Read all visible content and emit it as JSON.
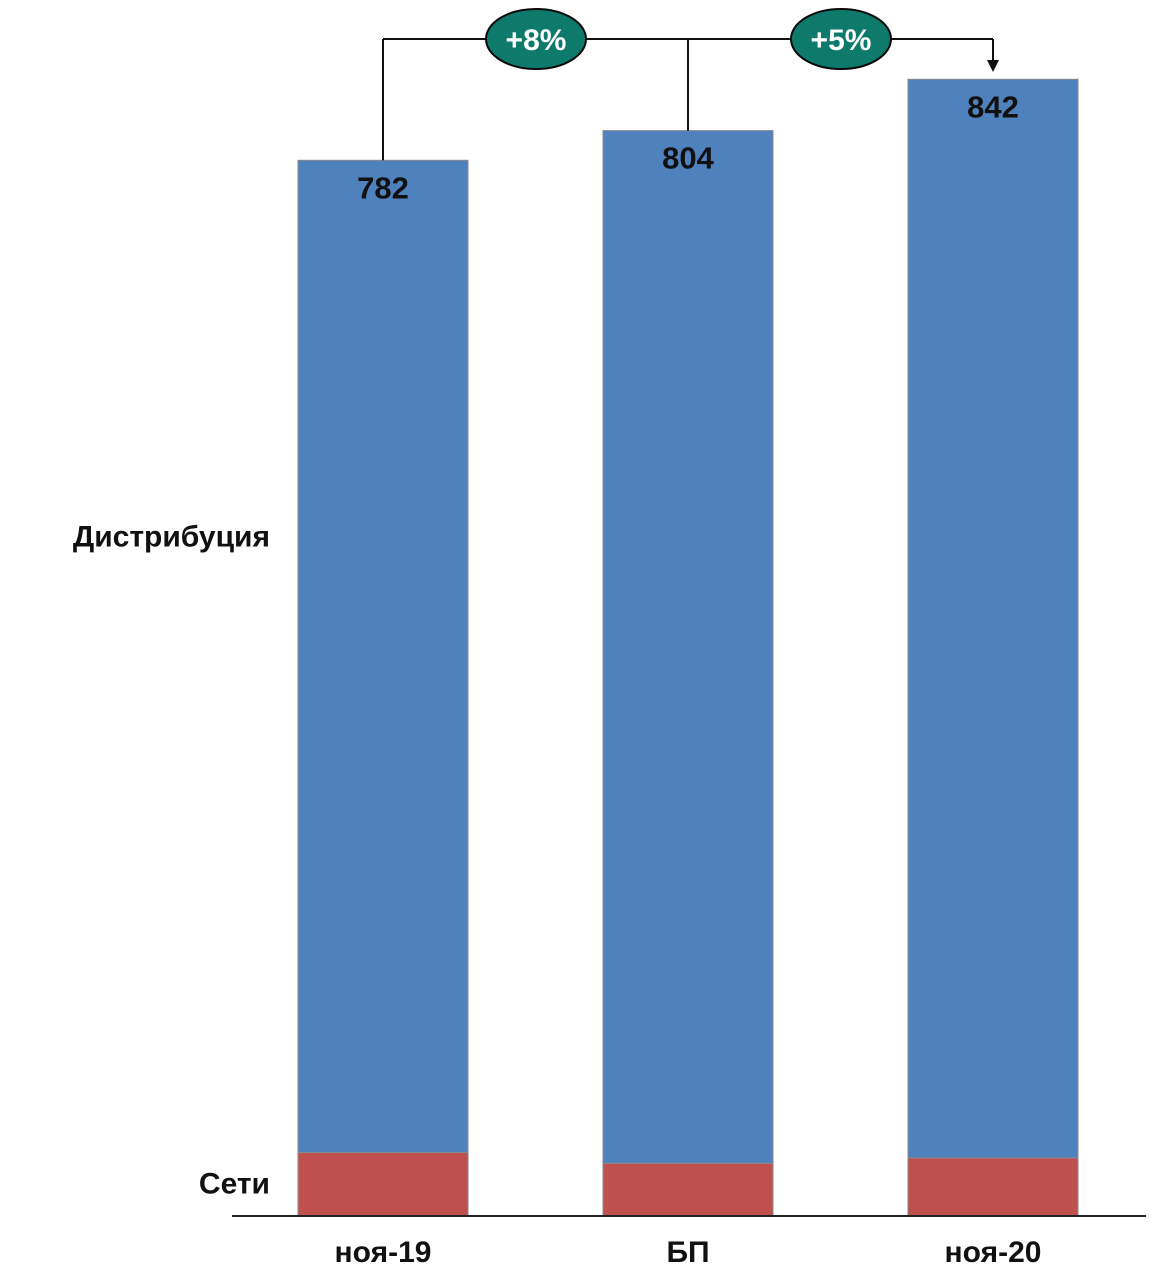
{
  "chart_data": {
    "type": "bar",
    "stacked": true,
    "categories": [
      "ноя-19",
      "БП",
      "ноя-20"
    ],
    "totals": [
      "782",
      "804",
      "842"
    ],
    "series": [
      {
        "name": "Сети",
        "values": [
          47,
          39,
          43
        ],
        "color": "#c0504d"
      },
      {
        "name": "Дистрибуция",
        "values": [
          735,
          765,
          799
        ],
        "color": "#4f81bd"
      }
    ],
    "ylim": [
      0,
      900
    ],
    "grid": false,
    "legend": "left, series names beside the bars",
    "annotations": [
      {
        "from": 0,
        "to": 2,
        "label": "+8%"
      },
      {
        "from": 1,
        "to": 2,
        "label": "+5%"
      }
    ],
    "colors": {
      "bubble": "#0e7a6c",
      "axis": "#222222",
      "text": "#111111"
    }
  }
}
